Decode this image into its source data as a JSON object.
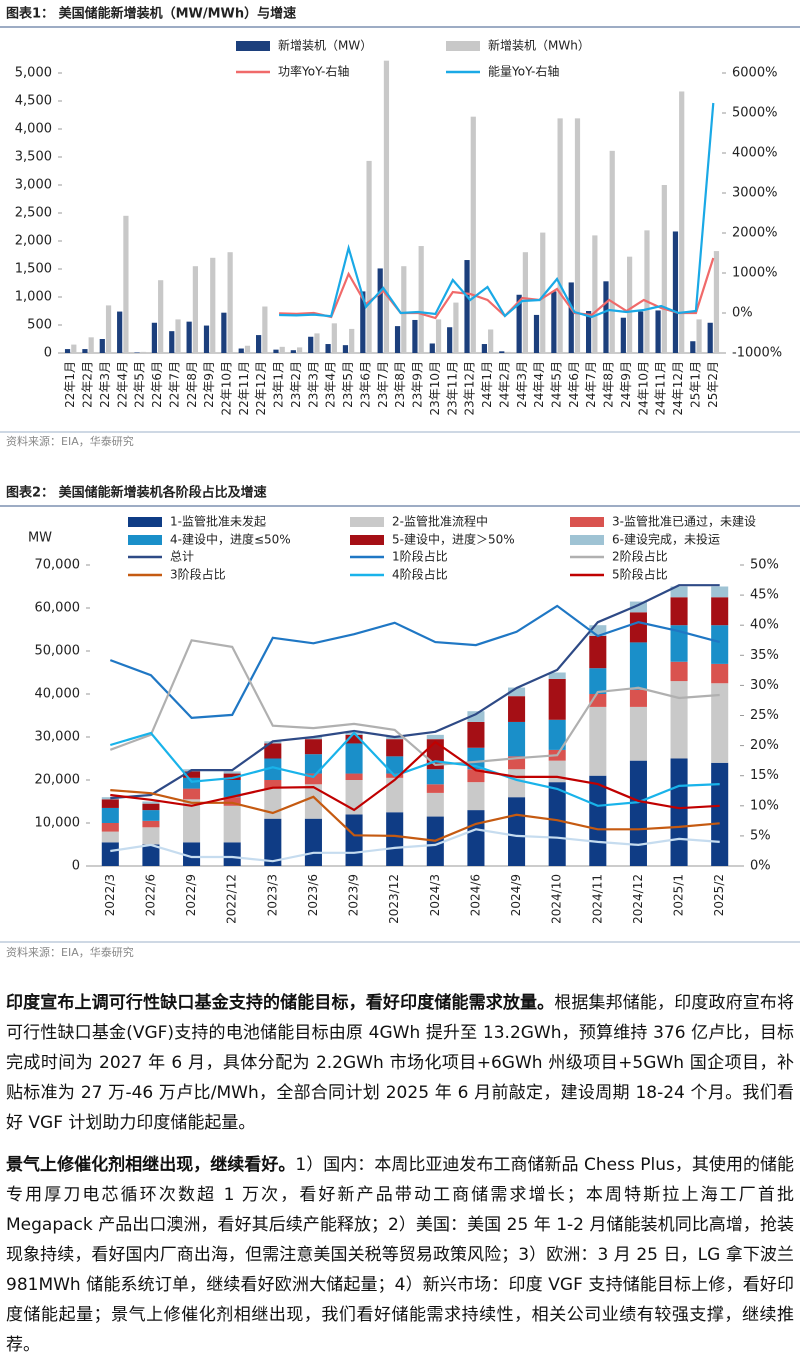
{
  "chart_data": [
    {
      "type": "bar",
      "title": "图表1： 美国储能新增装机（MW/MWh）与增速",
      "source": "资料来源：EIA，华泰研究",
      "categories": [
        "22年1月",
        "22年2月",
        "22年3月",
        "22年4月",
        "22年5月",
        "22年6月",
        "22年7月",
        "22年8月",
        "22年9月",
        "22年10月",
        "22年11月",
        "22年12月",
        "23年1月",
        "23年2月",
        "23年3月",
        "23年4月",
        "23年5月",
        "23年6月",
        "23年7月",
        "23年8月",
        "23年9月",
        "23年10月",
        "23年11月",
        "23年12月",
        "24年1月",
        "24年2月",
        "24年3月",
        "24年4月",
        "24年5月",
        "24年6月",
        "24年7月",
        "24年8月",
        "24年9月",
        "24年10月",
        "24年11月",
        "24年12月",
        "25年1月",
        "25年2月"
      ],
      "series": [
        {
          "name": "新增装机（MW）",
          "type": "bar",
          "color": "#1c3f7c",
          "values": [
            70,
            70,
            250,
            740,
            10,
            540,
            390,
            560,
            490,
            720,
            80,
            320,
            60,
            50,
            290,
            160,
            140,
            1100,
            1510,
            480,
            590,
            170,
            460,
            1660,
            160,
            30,
            1040,
            680,
            1100,
            1260,
            750,
            1280,
            630,
            740,
            760,
            2170,
            210,
            540
          ]
        },
        {
          "name": "新增装机（MWh）",
          "type": "bar",
          "color": "#c8c8c8",
          "values": [
            150,
            280,
            850,
            2450,
            20,
            1300,
            600,
            1550,
            1700,
            1800,
            130,
            830,
            110,
            100,
            350,
            530,
            430,
            3430,
            5220,
            1550,
            1910,
            600,
            900,
            4220,
            420,
            20,
            1800,
            2150,
            4190,
            4190,
            2100,
            3610,
            1720,
            2190,
            3000,
            4670,
            600,
            1820
          ]
        },
        {
          "name": "功率YoY-右轴",
          "type": "line",
          "axis": "y2",
          "color": "#f06a6a",
          "values": [
            null,
            null,
            null,
            null,
            null,
            null,
            null,
            null,
            null,
            null,
            null,
            null,
            -10,
            -20,
            0,
            -100,
            975,
            225,
            550,
            0,
            0,
            -125,
            525,
            475,
            325,
            -75,
            375,
            325,
            600,
            0,
            -50,
            325,
            50,
            325,
            125,
            0,
            0,
            1375
          ]
        },
        {
          "name": "能量YoY-右轴",
          "type": "line",
          "axis": "y2",
          "color": "#1aa9e6",
          "values": [
            null,
            null,
            null,
            null,
            null,
            null,
            null,
            null,
            null,
            null,
            null,
            null,
            -50,
            -60,
            -40,
            -80,
            1625,
            150,
            625,
            0,
            25,
            -25,
            825,
            325,
            650,
            -75,
            300,
            325,
            850,
            25,
            -100,
            75,
            25,
            75,
            175,
            0,
            50,
            5250
          ]
        }
      ],
      "ylim": [
        0,
        5000
      ],
      "yticks": [
        0,
        500,
        {
          "value": 1000,
          "label": "1,000"
        },
        {
          "value": 1500,
          "label": "1,500"
        },
        {
          "value": 2000,
          "label": "2,000"
        },
        {
          "value": 2500,
          "label": "2,500"
        },
        {
          "value": 3000,
          "label": "3,000"
        },
        {
          "value": 3500,
          "label": "3,500"
        },
        {
          "value": 4000,
          "label": "4,000"
        },
        {
          "value": 4500,
          "label": "4,500"
        },
        {
          "value": 5000,
          "label": "5,000"
        }
      ],
      "y2lim": [
        -1000,
        6000
      ],
      "y2ticks": [
        {
          "value": -1000,
          "label": "-1000%"
        },
        {
          "value": 0,
          "label": "0%"
        },
        {
          "value": 1000,
          "label": "1000%"
        },
        {
          "value": 2000,
          "label": "2000%"
        },
        {
          "value": 3000,
          "label": "3000%"
        },
        {
          "value": 4000,
          "label": "4000%"
        },
        {
          "value": 5000,
          "label": "5000%"
        },
        {
          "value": 6000,
          "label": "6000%"
        }
      ]
    },
    {
      "type": "bar",
      "stacked": true,
      "title": "图表2： 美国储能新增装机各阶段占比及增速",
      "source": "资料来源：EIA，华泰研究",
      "y_label": "MW",
      "categories": [
        "2022/3",
        "2022/6",
        "2022/9",
        "2022/12",
        "2023/3",
        "2023/6",
        "2023/9",
        "2023/12",
        "2024/3",
        "2024/6",
        "2024/9",
        "2024/10",
        "2024/11",
        "2024/12",
        "2025/1",
        "2025/2"
      ],
      "series": [
        {
          "name": "1-监管批准未发起",
          "type": "bar",
          "color": "#0f3c85",
          "values": [
            5500,
            5000,
            5500,
            5500,
            11000,
            11000,
            12000,
            12500,
            11500,
            13000,
            16000,
            19500,
            21000,
            24500,
            25000,
            24000
          ]
        },
        {
          "name": "2-监管批准流程中",
          "type": "bar",
          "color": "#c9c9c9",
          "values": [
            2500,
            4000,
            10000,
            8500,
            7000,
            8000,
            8000,
            8000,
            5500,
            6500,
            6500,
            5000,
            16000,
            12500,
            18000,
            18500
          ]
        },
        {
          "name": "3-监管批准已通过，未建设",
          "type": "bar",
          "color": "#d9534f",
          "values": [
            2000,
            1500,
            2500,
            2000,
            2000,
            2500,
            1500,
            1000,
            2000,
            3000,
            3000,
            2500,
            3000,
            4000,
            4500,
            4500
          ]
        },
        {
          "name": "4-建设中，进度≤50%",
          "type": "bar",
          "color": "#1a8fc9",
          "values": [
            3500,
            2500,
            2500,
            4000,
            5000,
            4500,
            7000,
            4000,
            3500,
            5000,
            8000,
            7000,
            6000,
            11000,
            8500,
            9000
          ]
        },
        {
          "name": "5-建设中，进度＞50%",
          "type": "bar",
          "color": "#a50f15",
          "values": [
            2000,
            1500,
            1500,
            1500,
            3500,
            3500,
            2000,
            4000,
            7000,
            6000,
            6000,
            9500,
            7500,
            7000,
            6500,
            6500
          ]
        },
        {
          "name": "6-建设完成，未投运",
          "type": "bar",
          "color": "#9fc3d4",
          "values": [
            500,
            500,
            500,
            500,
            500,
            500,
            500,
            500,
            1000,
            2500,
            2000,
            1500,
            2500,
            2500,
            2500,
            2500
          ]
        },
        {
          "name": "总计",
          "type": "line",
          "color": "#2e4a86",
          "values": [
            15800,
            16500,
            22300,
            22300,
            29000,
            30000,
            31400,
            30000,
            31200,
            35300,
            41400,
            45600,
            56700,
            60700,
            65300,
            65300
          ]
        },
        {
          "name": "1阶段占比",
          "type": "line",
          "axis": "y2",
          "color": "#1f77c4",
          "values": [
            34.2,
            31.7,
            24.6,
            25.1,
            37.9,
            37.0,
            38.5,
            40.4,
            37.2,
            36.7,
            38.9,
            43.2,
            38.2,
            40.5,
            39.0,
            37.2
          ]
        },
        {
          "name": "2阶段占比",
          "type": "line",
          "axis": "y2",
          "color": "#b0b0b0",
          "values": [
            19.3,
            21.8,
            37.5,
            36.4,
            23.3,
            22.9,
            23.6,
            22.6,
            16.8,
            17.3,
            17.9,
            18.4,
            28.9,
            29.6,
            27.9,
            28.4
          ]
        },
        {
          "name": "3阶段占比",
          "type": "line",
          "axis": "y2",
          "color": "#c55a11",
          "values": [
            12.6,
            12.1,
            10.5,
            10.5,
            8.8,
            11.5,
            5.1,
            5.0,
            4.2,
            7.0,
            8.5,
            7.6,
            6.1,
            6.1,
            6.5,
            7.1
          ]
        },
        {
          "name": "4阶段占比",
          "type": "line",
          "axis": "y2",
          "color": "#19b3ea",
          "values": [
            20.1,
            22.1,
            14.0,
            14.6,
            16.4,
            14.8,
            22.1,
            15.0,
            17.4,
            16.6,
            14.3,
            12.8,
            10.0,
            10.6,
            13.3,
            13.6
          ]
        },
        {
          "name": "5阶段占比",
          "type": "line",
          "axis": "y2",
          "color": "#c00000",
          "values": [
            11.8,
            11.0,
            10.0,
            11.5,
            13.0,
            13.1,
            9.3,
            14.3,
            20.6,
            15.9,
            14.8,
            14.8,
            13.6,
            10.8,
            9.6,
            10.0
          ]
        },
        {
          "type": "line",
          "axis": "y2",
          "color": "#c6dcef",
          "values": [
            2.5,
            3.5,
            1.5,
            1.5,
            0.8,
            2.2,
            2.2,
            3.0,
            3.5,
            6.1,
            5.0,
            4.7,
            4.0,
            3.5,
            4.5,
            4.0
          ]
        }
      ],
      "ylim": [
        0,
        70000
      ],
      "yticks": [
        0,
        {
          "value": 10000,
          "label": "10,000"
        },
        {
          "value": 20000,
          "label": "20,000"
        },
        {
          "value": 30000,
          "label": "30,000"
        },
        {
          "value": 40000,
          "label": "40,000"
        },
        {
          "value": 50000,
          "label": "50,000"
        },
        {
          "value": 60000,
          "label": "60,000"
        },
        {
          "value": 70000,
          "label": "70,000"
        }
      ],
      "y2lim": [
        0,
        50
      ],
      "y2ticks": [
        {
          "value": 0,
          "label": "0%"
        },
        {
          "value": 5,
          "label": "5%"
        },
        {
          "value": 10,
          "label": "10%"
        },
        {
          "value": 15,
          "label": "15%"
        },
        {
          "value": 20,
          "label": "20%"
        },
        {
          "value": 25,
          "label": "25%"
        },
        {
          "value": 30,
          "label": "30%"
        },
        {
          "value": 35,
          "label": "35%"
        },
        {
          "value": 40,
          "label": "40%"
        },
        {
          "value": 45,
          "label": "45%"
        },
        {
          "value": 50,
          "label": "50%"
        }
      ]
    }
  ],
  "text": {
    "paragraphs": [
      {
        "lead": "印度宣布上调可行性缺口基金支持的储能目标，看好印度储能需求放量。",
        "body": "根据集邦储能，印度政府宣布将可行性缺口基金(VGF)支持的电池储能目标由原 4GWh 提升至 13.2GWh，预算维持 376 亿卢比，目标完成时间为 2027 年 6 月，具体分配为 2.2GWh 市场化项目+6GWh 州级项目+5GWh 国企项目，补贴标准为 27 万-46 万卢比/MWh，全部合同计划 2025 年 6 月前敲定，建设周期 18-24 个月。我们看好 VGF 计划助力印度储能起量。"
      },
      {
        "lead": "景气上修催化剂相继出现，继续看好。",
        "body": "1）国内：本周比亚迪发布工商储新品 Chess Plus，其使用的储能专用厚刀电芯循环次数超 1 万次，看好新产品带动工商储需求增长；本周特斯拉上海工厂首批 Megapack 产品出口澳洲，看好其后续产能释放；2）美国：美国 25 年 1-2 月储能装机同比高增，抢装现象持续，看好国内厂商出海，但需注意美国关税等贸易政策风险；3）欧洲：3 月 25 日，LG 拿下波兰 981MWh 储能系统订单，继续看好欧洲大储起量；4）新兴市场：印度 VGF 支持储能目标上修，看好印度储能起量；景气上修催化剂相继出现，我们看好储能需求持续性，相关公司业绩有较强支撑，继续推荐。"
      }
    ]
  }
}
